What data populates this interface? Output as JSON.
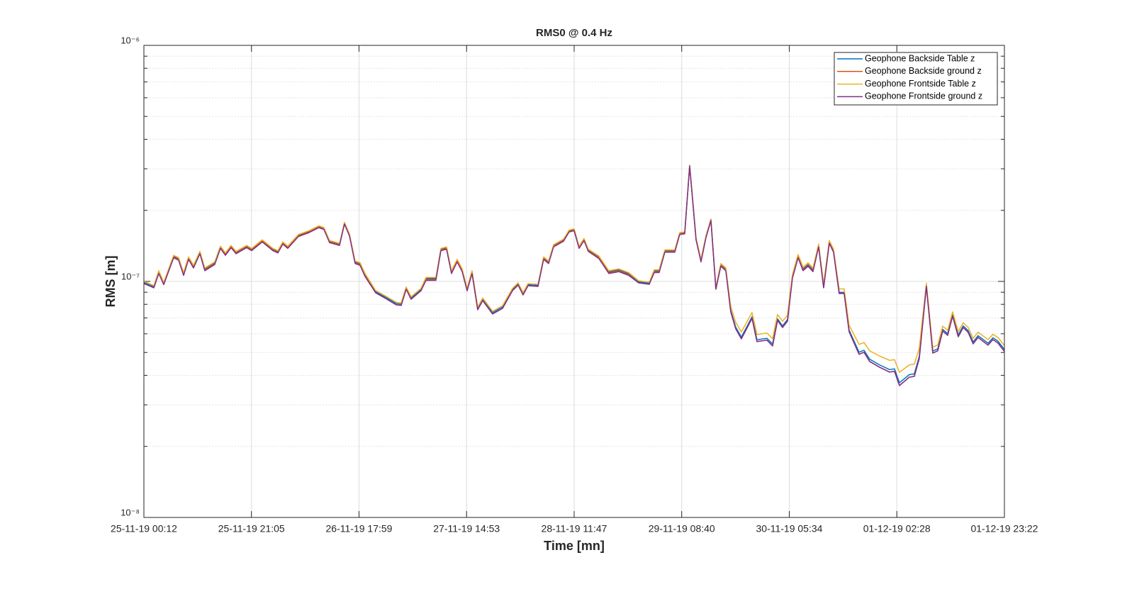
{
  "chart_data": {
    "type": "line",
    "title": "RMS0 @ 0.4 Hz",
    "x_label": "Time [mn]",
    "y_label": "RMS [m]",
    "log_y": true,
    "grid": true,
    "legend": "upper right",
    "xlim": [
      0,
      167.07
    ],
    "xticks": [
      {
        "value": 0,
        "label": "25-11-19 00:12"
      },
      {
        "value": 20.883,
        "label": "25-11-19 21:05"
      },
      {
        "value": 41.767,
        "label": "26-11-19 17:59"
      },
      {
        "value": 62.65,
        "label": "27-11-19 14:53"
      },
      {
        "value": 83.533,
        "label": "28-11-19 11:47"
      },
      {
        "value": 104.417,
        "label": "29-11-19 08:40"
      },
      {
        "value": 125.3,
        "label": "30-11-19 05:34"
      },
      {
        "value": 146.183,
        "label": "01-12-19 02:28"
      },
      {
        "value": 167.067,
        "label": "01-12-19 23:22"
      }
    ],
    "ylim": [
      1e-08,
      1e-06
    ],
    "yticks": [
      {
        "value": 1e-08,
        "label": "10⁻⁸"
      },
      {
        "value": 1e-07,
        "label": "10⁻⁷"
      },
      {
        "value": 1e-06,
        "label": "10⁻⁶"
      }
    ],
    "yminor_ticks": [
      2e-08,
      3e-08,
      4e-08,
      5e-08,
      6e-08,
      7e-08,
      8e-08,
      9e-08,
      2e-07,
      3e-07,
      4e-07,
      5e-07,
      6e-07,
      7e-07,
      8e-07,
      9e-07
    ],
    "x": [
      0,
      1.93,
      2.89,
      3.85,
      5.78,
      6.74,
      7.71,
      8.67,
      9.63,
      10.87,
      11.83,
      13.76,
      14.86,
      15.83,
      16.93,
      17.89,
      19.95,
      20.92,
      22.98,
      25.04,
      26.01,
      26.97,
      27.93,
      30.0,
      32.06,
      33.99,
      34.95,
      36.05,
      37.98,
      38.94,
      39.91,
      41.01,
      41.97,
      42.93,
      45.0,
      46.92,
      48.99,
      49.95,
      50.92,
      51.88,
      53.8,
      54.77,
      56.69,
      57.66,
      58.76,
      59.72,
      60.82,
      61.79,
      62.75,
      63.71,
      64.81,
      65.78,
      67.7,
      69.63,
      71.56,
      72.66,
      73.62,
      74.58,
      76.51,
      77.61,
      78.57,
      79.54,
      81.46,
      82.56,
      83.53,
      84.49,
      85.45,
      86.28,
      88.34,
      90.27,
      92.2,
      94.12,
      96.05,
      98.11,
      99.08,
      100.04,
      101.14,
      103.07,
      104.03,
      105.0,
      105.96,
      107.2,
      108.16,
      109.12,
      110.09,
      111.05,
      112.01,
      112.98,
      113.94,
      114.9,
      116.0,
      118.07,
      119.03,
      120.96,
      122.06,
      123.02,
      123.99,
      124.95,
      125.91,
      127.01,
      127.98,
      128.94,
      129.9,
      131.0,
      131.97,
      133.07,
      133.89,
      134.99,
      135.96,
      136.92,
      138.85,
      139.81,
      140.91,
      142.84,
      144.77,
      145.73,
      146.69,
      148.62,
      149.58,
      150.54,
      151.92,
      153.16,
      154.12,
      155.09,
      156.05,
      157.01,
      158.11,
      159.07,
      160.04,
      161.0,
      161.96,
      163.89,
      164.85,
      165.82,
      167.07
    ],
    "series": [
      {
        "name": "Geophone Backside Table z",
        "color": "#0072BD",
        "values": [
          9.9e-08,
          9.5e-08,
          1.1e-07,
          9.8e-08,
          1.28e-07,
          1.25e-07,
          1.08e-07,
          1.26e-07,
          1.16e-07,
          1.33e-07,
          1.13e-07,
          1.2e-07,
          1.4e-07,
          1.31e-07,
          1.41e-07,
          1.33e-07,
          1.41e-07,
          1.37e-07,
          1.49e-07,
          1.37e-07,
          1.34e-07,
          1.46e-07,
          1.4e-07,
          1.57e-07,
          1.63e-07,
          1.71e-07,
          1.68e-07,
          1.48e-07,
          1.44e-07,
          1.77e-07,
          1.58e-07,
          1.21e-07,
          1.19e-07,
          1.07e-07,
          9.05e-08,
          8.57e-08,
          8.06e-08,
          8.01e-08,
          9.37e-08,
          8.51e-08,
          9.24e-08,
          1.03e-07,
          1.03e-07,
          1.37e-07,
          1.39e-07,
          1.1e-07,
          1.23e-07,
          1.12e-07,
          9.24e-08,
          1.1e-07,
          7.69e-08,
          8.4e-08,
          7.38e-08,
          7.79e-08,
          9.24e-08,
          9.76e-08,
          8.87e-08,
          9.69e-08,
          9.63e-08,
          1.26e-07,
          1.21e-07,
          1.42e-07,
          1.5e-07,
          1.64e-07,
          1.66e-07,
          1.4e-07,
          1.51e-07,
          1.36e-07,
          1.27e-07,
          1.1e-07,
          1.12e-07,
          1.08e-07,
          9.96e-08,
          9.83e-08,
          1.11e-07,
          1.11e-07,
          1.35e-07,
          1.35e-07,
          1.6e-07,
          1.61e-07,
          3.1e-07,
          1.52e-07,
          1.23e-07,
          1.55e-07,
          1.83e-07,
          9.37e-08,
          1.18e-07,
          1.13e-07,
          7.53e-08,
          6.4e-08,
          5.81e-08,
          7.08e-08,
          5.66e-08,
          5.74e-08,
          5.43e-08,
          6.94e-08,
          6.48e-08,
          6.89e-08,
          1.05e-07,
          1.28e-07,
          1.13e-07,
          1.18e-07,
          1.12e-07,
          1.42e-07,
          9.5e-08,
          1.47e-07,
          1.35e-07,
          8.99e-08,
          8.99e-08,
          6.22e-08,
          5.01e-08,
          5.11e-08,
          4.68e-08,
          4.43e-08,
          4.23e-08,
          4.26e-08,
          3.72e-08,
          4.03e-08,
          4.06e-08,
          4.81e-08,
          9.63e-08,
          5.07e-08,
          5.18e-08,
          6.26e-08,
          6.01e-08,
          7.23e-08,
          5.93e-08,
          6.48e-08,
          6.18e-08,
          5.54e-08,
          5.89e-08,
          5.47e-08,
          5.77e-08,
          5.58e-08,
          5.15e-08
        ]
      },
      {
        "name": "Geophone Backside ground z",
        "color": "#D95319",
        "values": [
          9.8e-08,
          9.4e-08,
          1.09e-07,
          9.7e-08,
          1.27e-07,
          1.24e-07,
          1.07e-07,
          1.25e-07,
          1.15e-07,
          1.32e-07,
          1.12e-07,
          1.19e-07,
          1.39e-07,
          1.3e-07,
          1.4e-07,
          1.32e-07,
          1.4e-07,
          1.36e-07,
          1.48e-07,
          1.36e-07,
          1.33e-07,
          1.45e-07,
          1.39e-07,
          1.56e-07,
          1.62e-07,
          1.7e-07,
          1.67e-07,
          1.47e-07,
          1.43e-07,
          1.76e-07,
          1.57e-07,
          1.2e-07,
          1.18e-07,
          1.06e-07,
          8.95e-08,
          8.47e-08,
          7.96e-08,
          7.91e-08,
          9.27e-08,
          8.41e-08,
          9.14e-08,
          1.02e-07,
          1.02e-07,
          1.36e-07,
          1.38e-07,
          1.09e-07,
          1.22e-07,
          1.11e-07,
          9.14e-08,
          1.09e-07,
          7.59e-08,
          8.3e-08,
          7.28e-08,
          7.69e-08,
          9.14e-08,
          9.66e-08,
          8.77e-08,
          9.59e-08,
          9.53e-08,
          1.25e-07,
          1.2e-07,
          1.41e-07,
          1.49e-07,
          1.63e-07,
          1.65e-07,
          1.39e-07,
          1.5e-07,
          1.35e-07,
          1.26e-07,
          1.09e-07,
          1.11e-07,
          1.07e-07,
          9.86e-08,
          9.73e-08,
          1.1e-07,
          1.1e-07,
          1.34e-07,
          1.34e-07,
          1.59e-07,
          1.6e-07,
          3.09e-07,
          1.51e-07,
          1.22e-07,
          1.54e-07,
          1.82e-07,
          9.27e-08,
          1.17e-07,
          1.12e-07,
          7.43e-08,
          6.3e-08,
          5.71e-08,
          6.98e-08,
          5.56e-08,
          5.64e-08,
          5.33e-08,
          6.84e-08,
          6.38e-08,
          6.79e-08,
          1.04e-07,
          1.27e-07,
          1.12e-07,
          1.17e-07,
          1.11e-07,
          1.41e-07,
          9.4e-08,
          1.46e-07,
          1.34e-07,
          8.89e-08,
          8.89e-08,
          6.12e-08,
          4.91e-08,
          5.01e-08,
          4.58e-08,
          4.33e-08,
          4.13e-08,
          4.16e-08,
          3.62e-08,
          3.93e-08,
          3.96e-08,
          4.71e-08,
          9.53e-08,
          4.97e-08,
          5.08e-08,
          6.16e-08,
          5.91e-08,
          7.13e-08,
          5.83e-08,
          6.38e-08,
          6.08e-08,
          5.44e-08,
          5.79e-08,
          5.37e-08,
          5.67e-08,
          5.48e-08,
          5.05e-08
        ]
      },
      {
        "name": "Geophone Frontside Table z",
        "color": "#EDB120",
        "values": [
          1e-07,
          9.6e-08,
          1.11e-07,
          9.9e-08,
          1.29e-07,
          1.26e-07,
          1.09e-07,
          1.27e-07,
          1.17e-07,
          1.34e-07,
          1.14e-07,
          1.21e-07,
          1.41e-07,
          1.32e-07,
          1.42e-07,
          1.34e-07,
          1.42e-07,
          1.38e-07,
          1.5e-07,
          1.38e-07,
          1.35e-07,
          1.47e-07,
          1.41e-07,
          1.58e-07,
          1.64e-07,
          1.72e-07,
          1.69e-07,
          1.49e-07,
          1.45e-07,
          1.78e-07,
          1.59e-07,
          1.22e-07,
          1.2e-07,
          1.08e-07,
          9.15e-08,
          8.67e-08,
          8.16e-08,
          8.11e-08,
          9.47e-08,
          8.61e-08,
          9.34e-08,
          1.04e-07,
          1.04e-07,
          1.38e-07,
          1.4e-07,
          1.11e-07,
          1.24e-07,
          1.13e-07,
          9.34e-08,
          1.11e-07,
          7.79e-08,
          8.5e-08,
          7.48e-08,
          7.89e-08,
          9.34e-08,
          9.86e-08,
          8.97e-08,
          9.79e-08,
          9.73e-08,
          1.27e-07,
          1.22e-07,
          1.43e-07,
          1.51e-07,
          1.65e-07,
          1.67e-07,
          1.41e-07,
          1.52e-07,
          1.37e-07,
          1.28e-07,
          1.11e-07,
          1.13e-07,
          1.09e-07,
          1.006e-07,
          9.93e-08,
          1.12e-07,
          1.12e-07,
          1.36e-07,
          1.36e-07,
          1.61e-07,
          1.62e-07,
          3.11e-07,
          1.53e-07,
          1.24e-07,
          1.56e-07,
          1.84e-07,
          9.47e-08,
          1.19e-07,
          1.14e-07,
          7.83e-08,
          6.7e-08,
          6.11e-08,
          7.38e-08,
          5.96e-08,
          6.04e-08,
          5.73e-08,
          7.24e-08,
          6.78e-08,
          7.19e-08,
          1.07e-07,
          1.3e-07,
          1.15e-07,
          1.2e-07,
          1.14e-07,
          1.44e-07,
          9.8e-08,
          1.49e-07,
          1.37e-07,
          9.29e-08,
          9.29e-08,
          6.52e-08,
          5.41e-08,
          5.51e-08,
          5.08e-08,
          4.83e-08,
          4.63e-08,
          4.66e-08,
          4.12e-08,
          4.43e-08,
          4.46e-08,
          5.21e-08,
          9.83e-08,
          5.27e-08,
          5.38e-08,
          6.46e-08,
          6.21e-08,
          7.43e-08,
          6.13e-08,
          6.68e-08,
          6.38e-08,
          5.74e-08,
          6.09e-08,
          5.67e-08,
          5.97e-08,
          5.78e-08,
          5.35e-08
        ]
      },
      {
        "name": "Geophone Frontside ground z",
        "color": "#7E2F8E",
        "values": [
          9.8e-08,
          9.4e-08,
          1.08e-07,
          9.7e-08,
          1.26e-07,
          1.23e-07,
          1.06e-07,
          1.24e-07,
          1.14e-07,
          1.31e-07,
          1.11e-07,
          1.18e-07,
          1.38e-07,
          1.29e-07,
          1.39e-07,
          1.31e-07,
          1.39e-07,
          1.35e-07,
          1.47e-07,
          1.35e-07,
          1.32e-07,
          1.44e-07,
          1.38e-07,
          1.55e-07,
          1.61e-07,
          1.69e-07,
          1.66e-07,
          1.46e-07,
          1.42e-07,
          1.75e-07,
          1.56e-07,
          1.19e-07,
          1.17e-07,
          1.05e-07,
          8.95e-08,
          8.47e-08,
          7.96e-08,
          7.91e-08,
          9.27e-08,
          8.41e-08,
          9.14e-08,
          1.01e-07,
          1.01e-07,
          1.35e-07,
          1.37e-07,
          1.08e-07,
          1.21e-07,
          1.1e-07,
          9.14e-08,
          1.08e-07,
          7.59e-08,
          8.3e-08,
          7.28e-08,
          7.69e-08,
          9.14e-08,
          9.66e-08,
          8.77e-08,
          9.59e-08,
          9.53e-08,
          1.24e-07,
          1.19e-07,
          1.4e-07,
          1.48e-07,
          1.62e-07,
          1.64e-07,
          1.38e-07,
          1.49e-07,
          1.34e-07,
          1.25e-07,
          1.08e-07,
          1.1e-07,
          1.06e-07,
          9.86e-08,
          9.73e-08,
          1.09e-07,
          1.09e-07,
          1.33e-07,
          1.33e-07,
          1.58e-07,
          1.59e-07,
          3.08e-07,
          1.5e-07,
          1.21e-07,
          1.53e-07,
          1.81e-07,
          9.27e-08,
          1.16e-07,
          1.11e-07,
          7.43e-08,
          6.3e-08,
          5.71e-08,
          6.98e-08,
          5.56e-08,
          5.64e-08,
          5.33e-08,
          6.84e-08,
          6.38e-08,
          6.79e-08,
          1.03e-07,
          1.26e-07,
          1.11e-07,
          1.16e-07,
          1.1e-07,
          1.4e-07,
          9.4e-08,
          1.45e-07,
          1.33e-07,
          8.89e-08,
          8.89e-08,
          6.12e-08,
          4.91e-08,
          5.01e-08,
          4.58e-08,
          4.33e-08,
          4.13e-08,
          4.16e-08,
          3.62e-08,
          3.93e-08,
          3.96e-08,
          4.71e-08,
          9.53e-08,
          4.97e-08,
          5.08e-08,
          6.16e-08,
          5.91e-08,
          7.13e-08,
          5.83e-08,
          6.38e-08,
          6.08e-08,
          5.44e-08,
          5.79e-08,
          5.37e-08,
          5.67e-08,
          5.48e-08,
          5.05e-08
        ]
      }
    ]
  }
}
